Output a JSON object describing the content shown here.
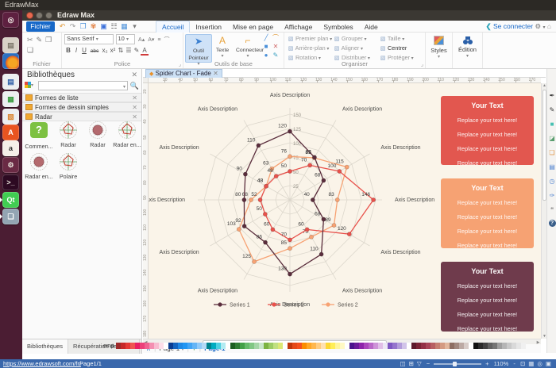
{
  "desktop": {
    "menubar_title": "EdrawMax"
  },
  "launcher": {
    "items": [
      {
        "name": "ubuntu-dash",
        "glyph": "◎",
        "bg": "#5e2040",
        "fg": "#f0e9e4"
      },
      {
        "name": "file-manager",
        "glyph": "▤",
        "bg": "#d8d1c6",
        "fg": "#7c7668"
      },
      {
        "name": "firefox",
        "glyph": "",
        "bg": "firefox",
        "fg": "#ffffff"
      },
      {
        "name": "libreoffice-writer",
        "glyph": "▤",
        "bg": "#eceff1",
        "fg": "#2f5fa8"
      },
      {
        "name": "libreoffice-calc",
        "glyph": "▦",
        "bg": "#eceff1",
        "fg": "#3c9e44"
      },
      {
        "name": "libreoffice-impress",
        "glyph": "▧",
        "bg": "#eceff1",
        "fg": "#d9822b"
      },
      {
        "name": "software-center",
        "glyph": "A",
        "bg": "#e95420",
        "fg": "#ffffff"
      },
      {
        "name": "amazon",
        "glyph": "a",
        "bg": "#f4efe8",
        "fg": "#2b2b2b"
      },
      {
        "name": "system-settings",
        "glyph": "⚙",
        "bg": "#6a2a44",
        "fg": "#e6e1d8"
      },
      {
        "name": "terminal",
        "glyph": ">_",
        "bg": "#2d0a22",
        "fg": "#e6e1d8"
      },
      {
        "name": "qt-creator",
        "glyph": "Qt",
        "bg": "#41cd52",
        "fg": "#ffffff",
        "arrow": true
      },
      {
        "name": "edraw-max",
        "glyph": "❏",
        "bg": "#93a5b3",
        "fg": "#ffffff",
        "arrow": true
      }
    ]
  },
  "window": {
    "title": "Edraw Max"
  },
  "menu": {
    "file_button": "Fichier",
    "quick_icons": [
      {
        "name": "undo-icon",
        "glyph": "↶",
        "color": "#e09a3a"
      },
      {
        "name": "redo-icon",
        "glyph": "↷",
        "color": "#9a9a9a"
      },
      {
        "name": "open-icon",
        "glyph": "❐",
        "color": "#4a90d9"
      },
      {
        "name": "snapshot-icon",
        "glyph": "✾",
        "color": "#e07a3a"
      },
      {
        "name": "save-icon",
        "glyph": "▣",
        "color": "#3a6fd9"
      },
      {
        "name": "print-icon",
        "glyph": "☷",
        "color": "#666666"
      },
      {
        "name": "format-icon",
        "glyph": "▦",
        "color": "#4a90d9"
      },
      {
        "name": "more-icon",
        "glyph": "▾",
        "color": "#777777"
      }
    ],
    "tabs": [
      {
        "label": "Accueil",
        "active": true
      },
      {
        "label": "Insertion",
        "active": false
      },
      {
        "label": "Mise en page",
        "active": false
      },
      {
        "label": "Affichage",
        "active": false
      },
      {
        "label": "Symboles",
        "active": false
      },
      {
        "label": "Aide",
        "active": false
      }
    ],
    "share_icon": "❮",
    "connect_label": "Se connecter",
    "gear_icon": "⚙",
    "pin_icon": "⌂"
  },
  "ribbon": {
    "fichier": {
      "label": "Fichier",
      "icons": [
        {
          "name": "cut-icon",
          "glyph": "✂"
        },
        {
          "name": "format-painter-icon",
          "glyph": "✎"
        },
        {
          "name": "copy-icon",
          "glyph": "❐"
        },
        {
          "name": "paste-icon",
          "glyph": "❏"
        }
      ]
    },
    "police": {
      "label": "Police",
      "font_name": "Sans Serif",
      "font_size": "10",
      "row1_icons": [
        {
          "name": "grow-font-icon",
          "glyph": "A▴"
        },
        {
          "name": "shrink-font-icon",
          "glyph": "A▾"
        },
        {
          "name": "align-icon",
          "glyph": "≡"
        },
        {
          "name": "arc-text-icon",
          "glyph": "⌒"
        }
      ],
      "row2_icons": [
        {
          "name": "bold-button",
          "glyph": "B"
        },
        {
          "name": "italic-button",
          "glyph": "I"
        },
        {
          "name": "underline-button",
          "glyph": "U"
        },
        {
          "name": "strikethrough-button",
          "glyph": "abc"
        },
        {
          "name": "subscript-button",
          "glyph": "x₂"
        },
        {
          "name": "superscript-button",
          "glyph": "x²"
        },
        {
          "name": "line-spacing-button",
          "glyph": "⇅"
        },
        {
          "name": "bullets-button",
          "glyph": "☰"
        },
        {
          "name": "highlight-button",
          "glyph": "✎"
        },
        {
          "name": "font-color-button",
          "glyph": "A"
        }
      ]
    },
    "outils": {
      "label": "Outils de base",
      "tools": [
        {
          "name": "pointer-tool",
          "label": "Outil Pointeur",
          "icon": "➤",
          "active": true
        },
        {
          "name": "text-tool",
          "label": "Texte",
          "icon": "A",
          "active": false
        },
        {
          "name": "connector-tool",
          "label": "Connecteur",
          "icon": "⌐",
          "active": false
        }
      ],
      "mini_icons": [
        {
          "name": "line-tool-icon",
          "glyph": "╱",
          "color": "#4a90d9"
        },
        {
          "name": "arc-tool-icon",
          "glyph": "⌒",
          "color": "#e09a3a"
        },
        {
          "name": "rect-tool-icon",
          "glyph": "■",
          "color": "#4a90d9"
        },
        {
          "name": "erase-tool-icon",
          "glyph": "✕",
          "color": "#d06a6a"
        },
        {
          "name": "ellipse-tool-icon",
          "glyph": "●",
          "color": "#4a90d9"
        },
        {
          "name": "pen-tool-icon",
          "glyph": "✎",
          "color": "#3aa0c0"
        }
      ]
    },
    "organiser": {
      "label": "Organiser",
      "buttons": [
        "Premier plan",
        "Arrière-plan",
        "Rotation",
        "Grouper",
        "Aligner",
        "Distribuer",
        "Taille",
        "Centrer",
        "Protéger"
      ]
    },
    "styles": {
      "label": "Styles"
    },
    "edition": {
      "label": "Édition"
    }
  },
  "library": {
    "title": "Bibliothèques",
    "close_icon": "✕",
    "sections": [
      {
        "label": "Formes de liste"
      },
      {
        "label": "Formes de dessin simples"
      },
      {
        "label": "Radar"
      }
    ],
    "shapes": [
      {
        "label": "Commen...",
        "kind": "comment",
        "glyph": "?"
      },
      {
        "label": "Radar",
        "kind": "radar-line"
      },
      {
        "label": "Radar",
        "kind": "radar-filled"
      },
      {
        "label": "Radar en...",
        "kind": "radar-line"
      },
      {
        "label": "Radar en...",
        "kind": "radar-filled"
      },
      {
        "label": "Polaire",
        "kind": "radar-line"
      }
    ],
    "bottom_tabs": [
      {
        "label": "Bibliothèques",
        "active": true
      },
      {
        "label": "Récupération de fichier",
        "active": false
      }
    ]
  },
  "document": {
    "tab_title": "Spider Chart - Fade",
    "tab_icon": "◆",
    "close_icon": "✕"
  },
  "rulers": {
    "h_start": 30,
    "h_end": 270,
    "h_step": 10,
    "v_start": 20,
    "v_end": 180,
    "v_step": 10
  },
  "chart_data": {
    "type": "radar",
    "title": "",
    "axes": [
      "Axis Description",
      "Axis Description",
      "Axis Description",
      "Axis Description",
      "Axis Description",
      "Axis Description",
      "Axis Description",
      "Axis Description",
      "Axis Description",
      "Axis Description",
      "Axis Description",
      "Axis Description"
    ],
    "ring_values": [
      25,
      50,
      75,
      100,
      125,
      150
    ],
    "max": 150,
    "grid": true,
    "legend_position": "bottom",
    "series": [
      {
        "name": "Series 1",
        "color": "#5a2d3c",
        "values": [
          120,
          86,
          68,
          40,
          68,
          110,
          130,
          86,
          92,
          80,
          90,
          110
        ]
      },
      {
        "name": "Series 2",
        "color": "#e8514b",
        "values": [
          50,
          70,
          100,
          146,
          120,
          60,
          70,
          60,
          50,
          52,
          48,
          48
        ]
      },
      {
        "name": "Series 2",
        "color": "#f7a273",
        "values": [
          76,
          85,
          115,
          83,
          89,
          75,
          85,
          125,
          103,
          68,
          48,
          63
        ]
      }
    ]
  },
  "text_boxes": [
    {
      "title": "Your Text",
      "bg": "#e2574f",
      "lines": [
        "Replace your text here!",
        "Replace your text here!",
        "Replace your text here!",
        "Replace your text here!"
      ]
    },
    {
      "title": "Your Text",
      "bg": "#f6a273",
      "lines": [
        "Replace your text here!",
        "Replace your text here!",
        "Replace your text here!",
        "Replace your text here!"
      ]
    },
    {
      "title": "Your Text",
      "bg": "#6f3b4c",
      "lines": [
        "Replace your text here!",
        "Replace your text here!",
        "Replace your text here!",
        "Replace your text here!"
      ]
    }
  ],
  "canvas_footer": {
    "collapse_icon": "∧",
    "page_tab": "Page-1",
    "tab_caret": "▾",
    "add_page_label": "+",
    "page_link": "Page-1",
    "palette_label": "emp"
  },
  "palette_colors": [
    "#9e2a2a",
    "#c62828",
    "#e53935",
    "#ef5350",
    "#e91e63",
    "#ec407a",
    "#f06292",
    "#f48fb1",
    "#f8bbd0",
    "#fcdde8",
    "#ffffff",
    "#0b3d91",
    "#1565c0",
    "#1e88e5",
    "#2196f3",
    "#42a5f5",
    "#64b5f6",
    "#90caf9",
    "#b3d9f7",
    "#00838f",
    "#00acc1",
    "#4dd0e1",
    "#b2ebf2",
    "#ffffff",
    "#1b5e20",
    "#2e7d32",
    "#43a047",
    "#66bb6a",
    "#81c784",
    "#a5d6a7",
    "#c8e6c9",
    "#7cb342",
    "#9ccc65",
    "#c0e080",
    "#dce775",
    "#ffffff",
    "#bf360c",
    "#e64a19",
    "#f4511e",
    "#fb8c00",
    "#ffa726",
    "#ffb74d",
    "#ffcc80",
    "#ffe0b2",
    "#fdd835",
    "#ffee58",
    "#fff59d",
    "#fff9c4",
    "#ffffff",
    "#4a148c",
    "#6a1b9a",
    "#8e24aa",
    "#ab47bc",
    "#ba68c8",
    "#ce93d8",
    "#e1bee7",
    "#ede7f6",
    "#7e57c2",
    "#9575cd",
    "#b39ddb",
    "#d1c4e9",
    "#ffffff",
    "#5d1a2c",
    "#7b2436",
    "#933046",
    "#a84457",
    "#b85f63",
    "#c67f72",
    "#d49a82",
    "#e2b79e",
    "#8d6e63",
    "#a1887f",
    "#bcaaa4",
    "#d7ccc8",
    "#ffffff",
    "#111111",
    "#2b2b2b",
    "#424242",
    "#616161",
    "#757575",
    "#9e9e9e",
    "#b5b5b5",
    "#c9c9c9",
    "#d9d9d9",
    "#e6e6e6",
    "#f0f0f0"
  ],
  "right_toolbar": [
    {
      "name": "pen-icon",
      "glyph": "✒",
      "color": "#333333"
    },
    {
      "name": "pencil-icon",
      "glyph": "✎",
      "color": "#333333"
    },
    {
      "name": "fill-color-icon",
      "glyph": "■",
      "color": "#46c0b2"
    },
    {
      "name": "image-icon",
      "glyph": "◪",
      "color": "#5a9e6f"
    },
    {
      "name": "clipart-icon",
      "glyph": "❏",
      "color": "#e0913f"
    },
    {
      "name": "document-icon",
      "glyph": "▤",
      "color": "#4a7fd0"
    },
    {
      "name": "hyperlink-icon",
      "glyph": "◷",
      "color": "#4a7fd0"
    },
    {
      "name": "note-icon",
      "glyph": "✑",
      "color": "#4a7fd0"
    },
    {
      "name": "comment-icon",
      "glyph": "❝",
      "color": "#8a8a8a"
    },
    {
      "name": "help-icon",
      "glyph": "?",
      "color": "#3a5f8a"
    }
  ],
  "status_bar": {
    "url": "https://www.edrawsoft.com/fr/",
    "page_info": "Page1/1",
    "zoom_level": "110%",
    "zoom_out": "−",
    "zoom_in": "+",
    "zoom_caret": "-",
    "left_icons": [
      {
        "name": "pan-mode-icon",
        "glyph": "◫"
      },
      {
        "name": "fit-page-icon",
        "glyph": "⊞"
      },
      {
        "name": "filter-icon",
        "glyph": "▽"
      }
    ],
    "right_icons": [
      {
        "name": "fit-window-icon",
        "glyph": "⊡"
      },
      {
        "name": "grid-view-icon",
        "glyph": "▦"
      },
      {
        "name": "magnifier-icon",
        "glyph": "◎"
      },
      {
        "name": "presentation-icon",
        "glyph": "▣"
      }
    ]
  }
}
